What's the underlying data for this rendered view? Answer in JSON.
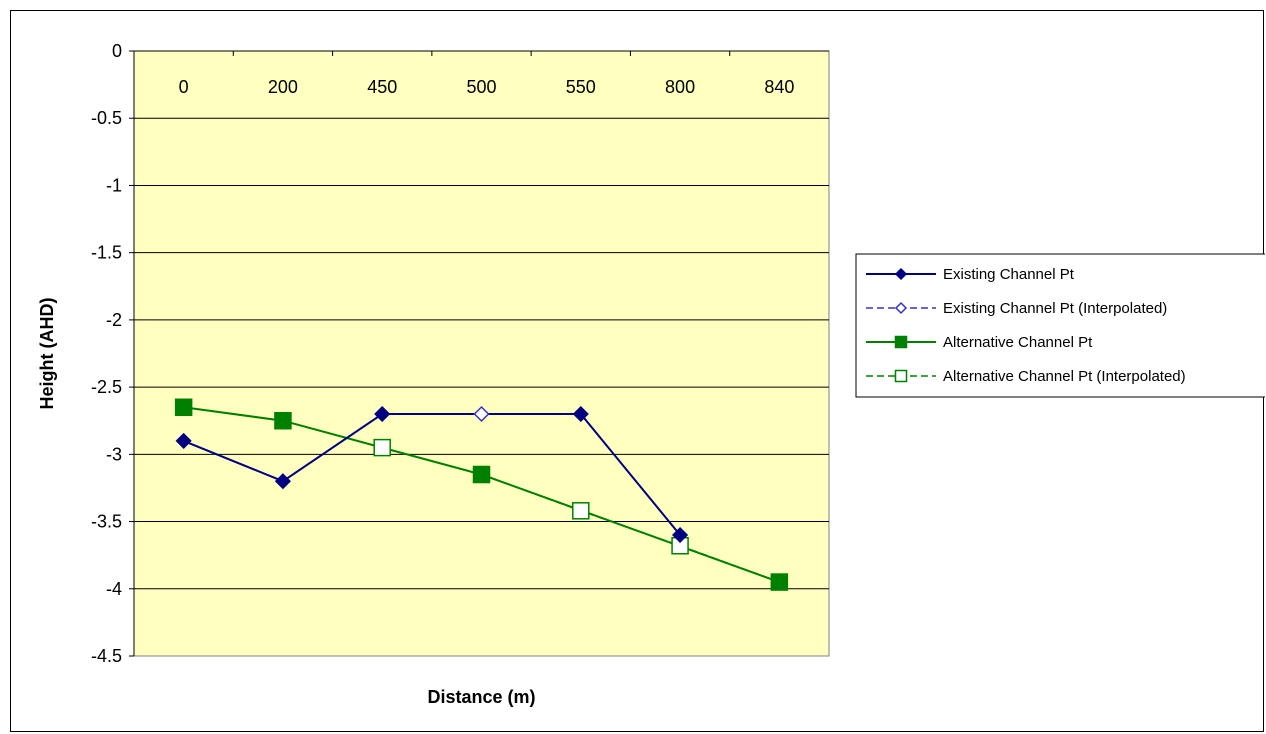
{
  "chart_data": {
    "type": "line",
    "title": "",
    "xlabel": "Distance (m)",
    "ylabel": "Height (AHD)",
    "categories": [
      "0",
      "200",
      "450",
      "500",
      "550",
      "800",
      "840"
    ],
    "ylim": [
      -4.5,
      0
    ],
    "yticks": [
      "0",
      "-0.5",
      "-1",
      "-1.5",
      "-2",
      "-2.5",
      "-3",
      "-3.5",
      "-4",
      "-4.5"
    ],
    "ytick_values": [
      0,
      -0.5,
      -1,
      -1.5,
      -2,
      -2.5,
      -3,
      -3.5,
      -4,
      -4.5
    ],
    "x_axis_position": "top",
    "grid": "horizontal",
    "plot_background": "#ffffc0",
    "legend_position": "right",
    "series": [
      {
        "name": "Existing Channel Pt",
        "values": [
          -2.9,
          -3.2,
          -2.7,
          null,
          -2.7,
          -3.6,
          null
        ],
        "color": "#000080",
        "line": "solid",
        "marker": "diamond",
        "marker_fill": true
      },
      {
        "name": "Existing Channel Pt (Interpolated)",
        "values": [
          -2.9,
          -3.2,
          -2.7,
          -2.7,
          -2.7,
          -3.6,
          null
        ],
        "color": "#3333cc",
        "line": "dashed",
        "marker": "diamond",
        "marker_fill": false,
        "marker_points": [
          3
        ]
      },
      {
        "name": "Alternative Channel Pt",
        "values": [
          -2.65,
          -2.75,
          null,
          -3.15,
          null,
          null,
          -3.95
        ],
        "color": "#008000",
        "line": "solid",
        "marker": "square",
        "marker_fill": true
      },
      {
        "name": "Alternative Channel Pt (Interpolated)",
        "values": [
          -2.65,
          -2.75,
          -2.95,
          -3.15,
          -3.42,
          -3.68,
          -3.95
        ],
        "color": "#008000",
        "line": "dashed",
        "marker": "square",
        "marker_fill": false,
        "marker_points": [
          2,
          4,
          5
        ]
      }
    ]
  }
}
